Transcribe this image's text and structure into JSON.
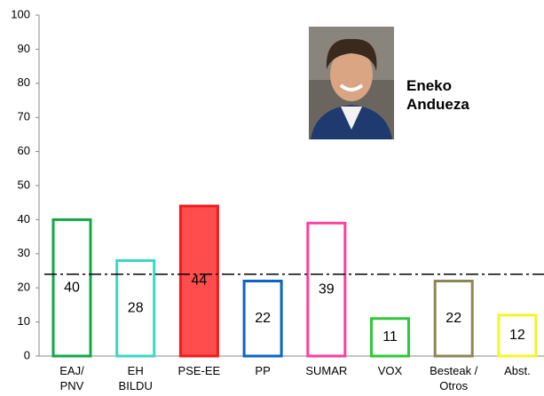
{
  "chart_data": {
    "type": "bar",
    "categories": [
      [
        "EAJ/",
        "PNV"
      ],
      [
        "EH",
        "BILDU"
      ],
      [
        "PSE-EE"
      ],
      [
        "PP"
      ],
      [
        "SUMAR"
      ],
      [
        "VOX"
      ],
      [
        "Besteak /",
        "Otros"
      ],
      [
        "Abst."
      ]
    ],
    "values": [
      40,
      28,
      44,
      22,
      39,
      11,
      22,
      12
    ],
    "colors": [
      "#12a84a",
      "#3ad6c8",
      "#ee1c1c",
      "#0b64c4",
      "#ff3d9e",
      "#2fc83a",
      "#8c8656",
      "#f4f42a"
    ],
    "fills": [
      "#ffffff",
      "#ffffff",
      "#ff4d4d",
      "#ffffff",
      "#ffffff",
      "#ffffff",
      "#ffffff",
      "#ffffff"
    ],
    "ylim": [
      0,
      100
    ],
    "yticks": [
      0,
      10,
      20,
      30,
      40,
      50,
      60,
      70,
      80,
      90,
      100
    ],
    "reference_line": 24,
    "annotation": [
      "Eneko",
      "Andueza"
    ]
  }
}
